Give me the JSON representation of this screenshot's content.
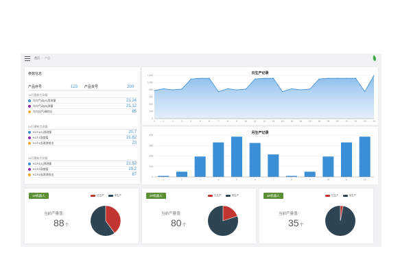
{
  "breadcrumb": {
    "home": "首页",
    "separator": "/",
    "current": "产品"
  },
  "params": {
    "title": "参数信息",
    "summary": [
      {
        "label": "产品序号",
        "value": "123"
      },
      {
        "label": "产品货号",
        "value": "200"
      }
    ],
    "groups": [
      {
        "title": "1#打磨粉力测量",
        "items": [
          {
            "label": "均匀气动(X)用测量",
            "value": "21.24",
            "color": "#3a8fd6"
          },
          {
            "label": "均匀气动(B)测量",
            "value": "21.12",
            "color": "#8e24aa"
          },
          {
            "label": "均匀出气阀检出",
            "value": "85",
            "color": "#f5a623"
          }
        ]
      },
      {
        "title": "2#打磨粉力测量",
        "items": [
          {
            "label": "KCF1(1)测测量",
            "value": "20.7",
            "color": "#3a8fd6"
          },
          {
            "label": "KCF1导度值",
            "value": "21.82",
            "color": "#8e24aa"
          },
          {
            "label": "KCF1出测测检出",
            "value": "23",
            "color": "#f5a623"
          }
        ]
      },
      {
        "title": "3#打磨粉力测量",
        "items": [
          {
            "label": "KCF2(1)测测量",
            "value": "21.52",
            "color": "#3a8fd6"
          },
          {
            "label": "KCF2导度值",
            "value": "20.2",
            "color": "#8e24aa"
          },
          {
            "label": "KCF2出测测检出",
            "value": "87",
            "color": "#f5a623"
          }
        ]
      }
    ]
  },
  "chart_data": [
    {
      "type": "area",
      "title": "日生产记录",
      "x": [
        "0",
        "1",
        "2",
        "3",
        "4",
        "5",
        "6",
        "7",
        "8",
        "9",
        "10",
        "11",
        "12",
        "13",
        "14",
        "15",
        "16",
        "17",
        "18",
        "19",
        "20",
        "21",
        "22",
        "23",
        "24"
      ],
      "values": [
        780,
        830,
        800,
        820,
        1100,
        1120,
        1120,
        750,
        830,
        800,
        820,
        1100,
        1120,
        1120,
        750,
        830,
        800,
        820,
        1100,
        1120,
        1120,
        1120,
        1120,
        750,
        1200
      ],
      "ylim": [
        0,
        1200
      ],
      "yticks": [
        "0",
        "200",
        "400",
        "600",
        "800",
        "1,000",
        "1,200"
      ],
      "color": "#3a8fd6"
    },
    {
      "type": "bar",
      "title": "月生产记录",
      "categories": [
        "1",
        "2",
        "3",
        "4",
        "5",
        "6",
        "7",
        "8",
        "9",
        "10",
        "11",
        "12"
      ],
      "values": [
        10,
        50,
        195,
        330,
        385,
        325,
        215,
        10,
        50,
        195,
        330,
        385
      ],
      "ylim": [
        0,
        400
      ],
      "yticks": [
        "0",
        "100",
        "200",
        "300",
        "400"
      ],
      "color": "#3a8fd6"
    }
  ],
  "stats": [
    {
      "badge": "1#机器人",
      "label": "当前产量值:",
      "value": "88",
      "unit": "个",
      "legend_a": "已生产",
      "legend_b": "未生产",
      "produced_fraction": 0.4
    },
    {
      "badge": "2#机器人",
      "label": "当前产量值:",
      "value": "80",
      "unit": "个",
      "legend_a": "已生产",
      "legend_b": "未生产",
      "produced_fraction": 0.2
    },
    {
      "badge": "3#机器人",
      "label": "当前产量值:",
      "value": "35",
      "unit": "个",
      "legend_a": "已生产",
      "legend_b": "未生产",
      "produced_fraction": 0.03
    }
  ],
  "colors": {
    "produced": "#c23531",
    "remaining": "#2f4554",
    "accent": "#3a8fd6",
    "badge": "#5c8f35"
  }
}
